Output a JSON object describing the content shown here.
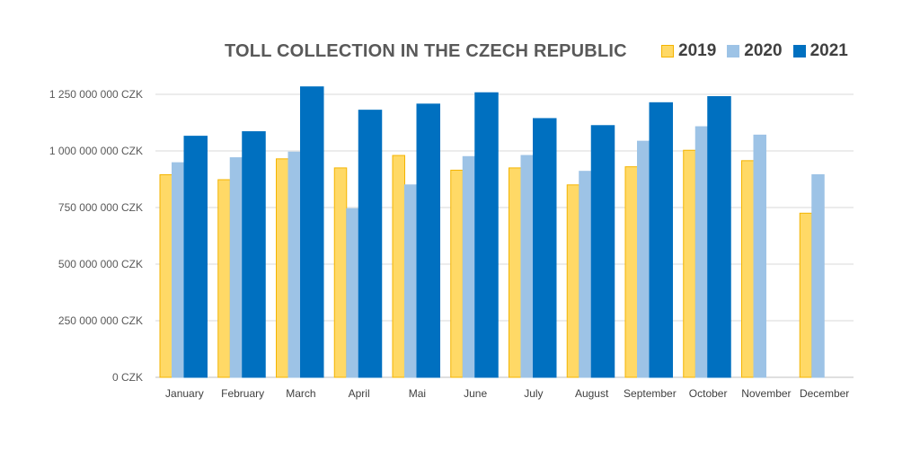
{
  "chart_data": {
    "type": "bar",
    "title": "TOLL COLLECTION IN THE CZECH REPUBLIC",
    "xlabel": "",
    "ylabel": "",
    "ylim": [
      0,
      1250000000
    ],
    "grid": true,
    "legend_position": "top-right",
    "y_tick_values": [
      0,
      250000000,
      500000000,
      750000000,
      1000000000,
      1250000000
    ],
    "y_tick_labels": [
      "0 CZK",
      "250 000 000 CZK",
      "500 000 000 CZK",
      "750 000 000 CZK",
      "1 000 000 000 CZK",
      "1 250 000 000 CZK"
    ],
    "categories": [
      "January",
      "February",
      "March",
      "April",
      "Mai",
      "June",
      "July",
      "August",
      "September",
      "October",
      "November",
      "December"
    ],
    "series": [
      {
        "name": "2019",
        "color": "#FFD966",
        "border": "#F4B400",
        "values": [
          895000000,
          873000000,
          965000000,
          925000000,
          980000000,
          915000000,
          925000000,
          850000000,
          930000000,
          1003000000,
          957000000,
          725000000
        ]
      },
      {
        "name": "2020",
        "color": "#9DC3E6",
        "border": "#9DC3E6",
        "values": [
          948000000,
          970000000,
          995000000,
          745000000,
          850000000,
          975000000,
          980000000,
          910000000,
          1043000000,
          1107000000,
          1070000000,
          895000000
        ]
      },
      {
        "name": "2021",
        "color": "#0070C0",
        "border": "#0070C0",
        "values": [
          1065000000,
          1085000000,
          1283000000,
          1180000000,
          1207000000,
          1257000000,
          1143000000,
          1112000000,
          1213000000,
          1240000000,
          null,
          null
        ]
      }
    ]
  }
}
